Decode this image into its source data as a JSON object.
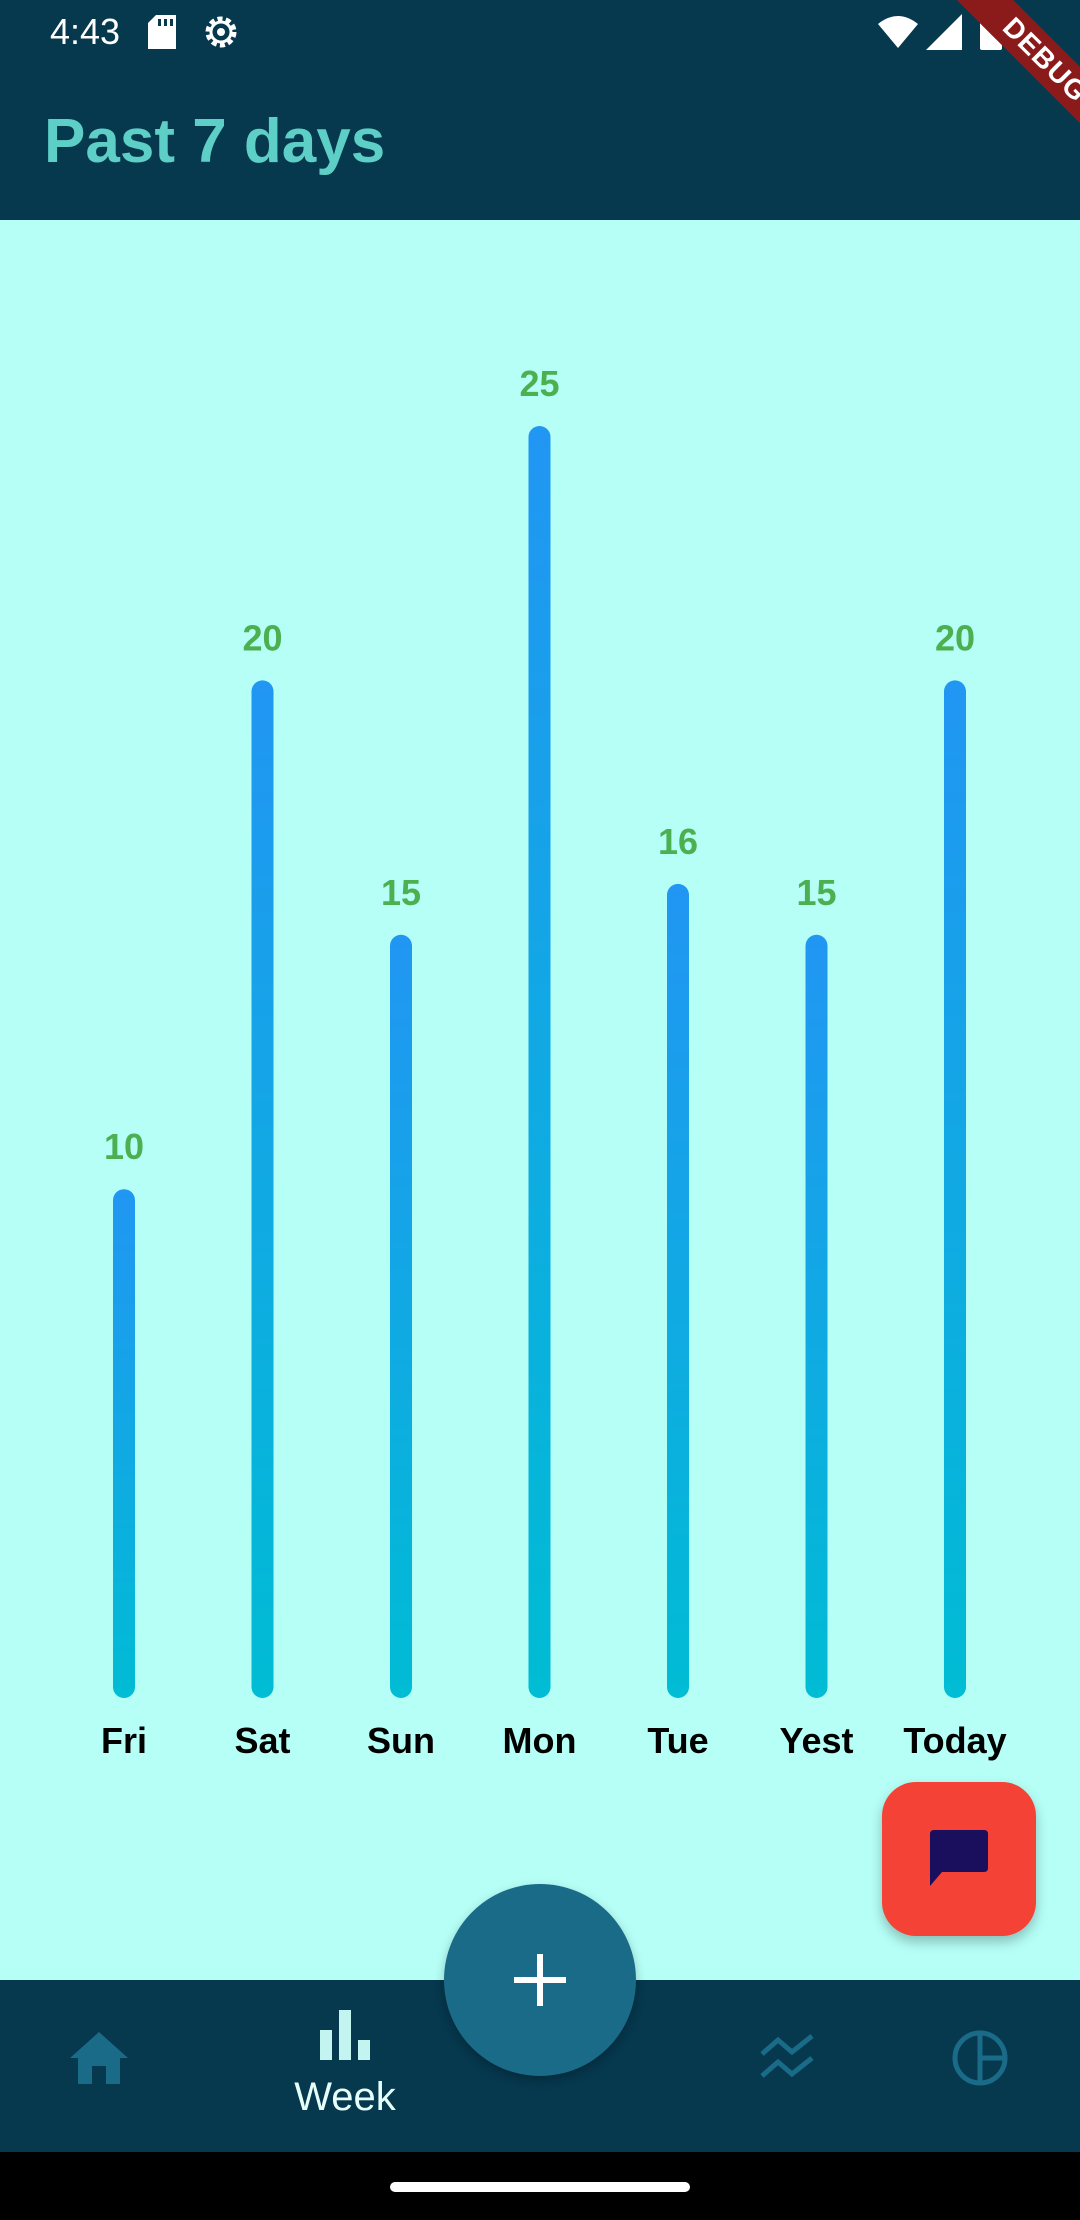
{
  "status_bar": {
    "time": "4:43",
    "icons": [
      "sd-card-icon",
      "settings-icon",
      "wifi-icon",
      "signal-icon",
      "battery-icon"
    ]
  },
  "app_bar": {
    "title": "Past 7 days"
  },
  "debug_banner": "DEBUG",
  "chart_data": {
    "type": "bar",
    "categories": [
      "Fri",
      "Sat",
      "Sun",
      "Mon",
      "Tue",
      "Yest",
      "Today"
    ],
    "values": [
      10,
      20,
      15,
      25,
      16,
      15,
      20
    ],
    "ylim": [
      0,
      25
    ],
    "grid": false,
    "colors": {
      "bar_top": "#2196f3",
      "bar_bottom": "#00bcd4",
      "value_label": "#4caf50",
      "category_label": "#000000"
    }
  },
  "fab_chat": {
    "icon": "chat-bubble-icon",
    "color": "#f44336"
  },
  "fab_add": {
    "icon": "plus-icon",
    "color": "#1a6b88"
  },
  "bottom_nav": {
    "items": [
      {
        "icon": "home-icon",
        "label": "",
        "active": false
      },
      {
        "icon": "bar-chart-icon",
        "label": "Week",
        "active": true
      },
      {
        "icon": "trends-icon",
        "label": "",
        "active": false
      },
      {
        "icon": "pie-chart-icon",
        "label": "",
        "active": false
      }
    ]
  },
  "colors": {
    "app_bar": "#06384e",
    "background": "#b5fff7",
    "title": "#5ecfc6"
  }
}
